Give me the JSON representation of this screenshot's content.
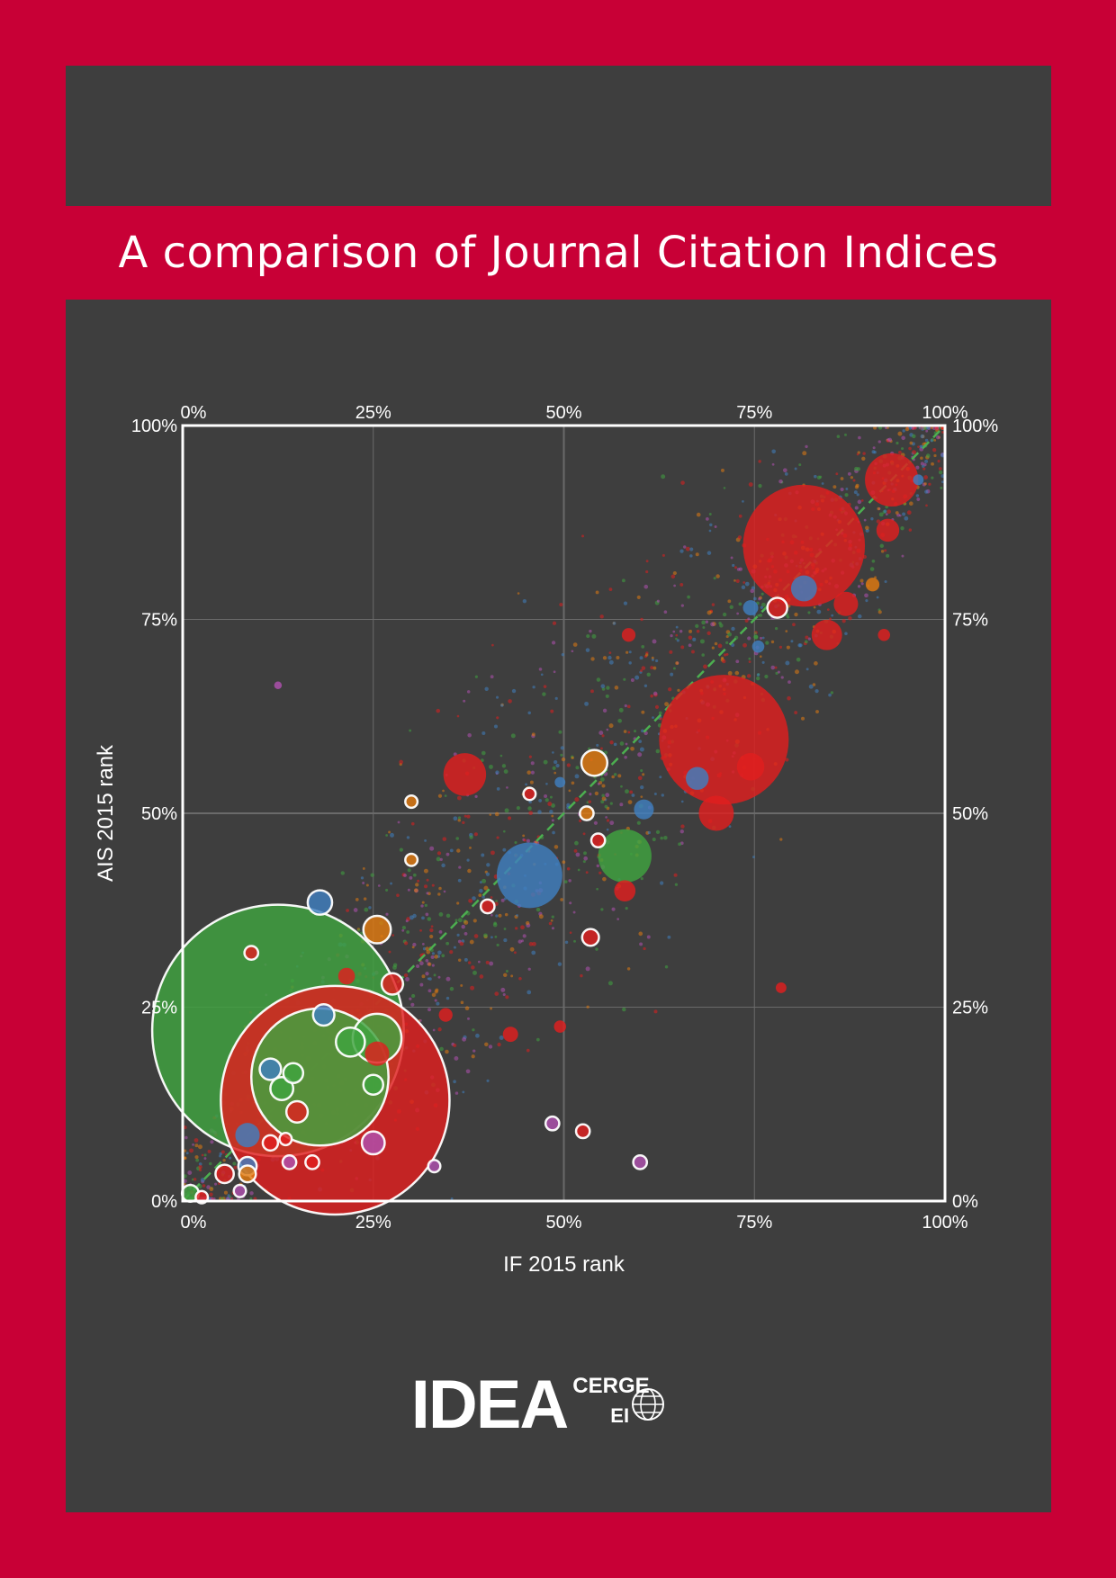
{
  "cover": {
    "title": "A comparison of Journal Citation Indices"
  },
  "logo": {
    "main": "IDEA",
    "cerge": "CERGE",
    "ei": "EI"
  },
  "colors": {
    "page_background": "#c80036",
    "panel_background": "#3e3e3e",
    "red": "#e01e1e",
    "green": "#3fa33f",
    "blue": "#3f7fbf",
    "orange": "#e07a10",
    "purple": "#b050b0",
    "diagonal": "#4caf50",
    "grid": "#6a6a6a",
    "frame": "#ffffff"
  },
  "chart_data": {
    "type": "scatter",
    "xlabel": "IF 2015 rank",
    "ylabel": "AIS 2015 rank",
    "xlim": [
      0,
      100
    ],
    "ylim": [
      0,
      100
    ],
    "x_ticks": [
      "0%",
      "25%",
      "50%",
      "75%",
      "100%"
    ],
    "y_ticks": [
      "0%",
      "25%",
      "50%",
      "75%",
      "100%"
    ],
    "grid": true,
    "diagonal_reference": true,
    "legend": "none",
    "bubbles": [
      {
        "x": 12.5,
        "y": 22,
        "r": 16.5,
        "color": "green",
        "outlined": true
      },
      {
        "x": 20,
        "y": 13,
        "r": 15,
        "color": "red",
        "outlined": true
      },
      {
        "x": 18,
        "y": 16,
        "r": 9,
        "color": "green",
        "outlined": true
      },
      {
        "x": 81.5,
        "y": 84.5,
        "r": 8,
        "color": "red",
        "outlined": false
      },
      {
        "x": 71,
        "y": 59.5,
        "r": 8.5,
        "color": "red",
        "outlined": false
      },
      {
        "x": 45.5,
        "y": 42,
        "r": 4.3,
        "color": "blue",
        "outlined": false
      },
      {
        "x": 58,
        "y": 44.5,
        "r": 3.5,
        "color": "green",
        "outlined": false
      },
      {
        "x": 37,
        "y": 55,
        "r": 2.8,
        "color": "red",
        "outlined": false
      },
      {
        "x": 93,
        "y": 93,
        "r": 3.5,
        "color": "red",
        "outlined": false
      },
      {
        "x": 70,
        "y": 50,
        "r": 2.3,
        "color": "red",
        "outlined": false
      },
      {
        "x": 84.5,
        "y": 73,
        "r": 2,
        "color": "red",
        "outlined": false
      },
      {
        "x": 25.5,
        "y": 21,
        "r": 3.2,
        "color": "green",
        "outlined": true
      },
      {
        "x": 22,
        "y": 20.5,
        "r": 1.9,
        "color": "green",
        "outlined": true
      },
      {
        "x": 25.5,
        "y": 19,
        "r": 1.6,
        "color": "red",
        "outlined": false
      },
      {
        "x": 18,
        "y": 38.5,
        "r": 1.6,
        "color": "blue",
        "outlined": true
      },
      {
        "x": 25.5,
        "y": 35,
        "r": 1.8,
        "color": "orange",
        "outlined": true
      },
      {
        "x": 54,
        "y": 56.5,
        "r": 1.7,
        "color": "orange",
        "outlined": true
      },
      {
        "x": 81.5,
        "y": 79,
        "r": 1.7,
        "color": "blue",
        "outlined": false
      },
      {
        "x": 78,
        "y": 76.5,
        "r": 1.3,
        "color": "red",
        "outlined": true
      },
      {
        "x": 13,
        "y": 14.5,
        "r": 1.5,
        "color": "green",
        "outlined": true
      },
      {
        "x": 11.5,
        "y": 17,
        "r": 1.4,
        "color": "blue",
        "outlined": true
      },
      {
        "x": 15,
        "y": 11.5,
        "r": 1.4,
        "color": "red",
        "outlined": true
      },
      {
        "x": 14.5,
        "y": 16.5,
        "r": 1.3,
        "color": "green",
        "outlined": true
      },
      {
        "x": 18.5,
        "y": 24,
        "r": 1.4,
        "color": "blue",
        "outlined": true
      },
      {
        "x": 27.5,
        "y": 28,
        "r": 1.4,
        "color": "red",
        "outlined": true
      },
      {
        "x": 25,
        "y": 7.5,
        "r": 1.5,
        "color": "purple",
        "outlined": true
      },
      {
        "x": 25,
        "y": 15,
        "r": 1.3,
        "color": "green",
        "outlined": true
      },
      {
        "x": 8.5,
        "y": 8.5,
        "r": 1.6,
        "color": "blue",
        "outlined": false
      },
      {
        "x": 5.5,
        "y": 3.5,
        "r": 1.2,
        "color": "red",
        "outlined": true
      },
      {
        "x": 8.5,
        "y": 4.5,
        "r": 1.2,
        "color": "blue",
        "outlined": true
      },
      {
        "x": 8.5,
        "y": 3.5,
        "r": 1.1,
        "color": "orange",
        "outlined": true
      },
      {
        "x": 1,
        "y": 1,
        "r": 1.1,
        "color": "green",
        "outlined": true
      },
      {
        "x": 2.5,
        "y": 0.5,
        "r": 0.8,
        "color": "red",
        "outlined": true
      },
      {
        "x": 7.5,
        "y": 1.3,
        "r": 0.8,
        "color": "purple",
        "outlined": true
      },
      {
        "x": 11.5,
        "y": 7.5,
        "r": 1,
        "color": "red",
        "outlined": true
      },
      {
        "x": 13.5,
        "y": 8,
        "r": 0.8,
        "color": "red",
        "outlined": true
      },
      {
        "x": 14,
        "y": 5,
        "r": 0.9,
        "color": "purple",
        "outlined": true
      },
      {
        "x": 17,
        "y": 5,
        "r": 0.9,
        "color": "red",
        "outlined": true
      },
      {
        "x": 9,
        "y": 32,
        "r": 0.9,
        "color": "red",
        "outlined": true
      },
      {
        "x": 21.5,
        "y": 29,
        "r": 1.1,
        "color": "red",
        "outlined": false
      },
      {
        "x": 30,
        "y": 51.5,
        "r": 0.8,
        "color": "orange",
        "outlined": true
      },
      {
        "x": 30,
        "y": 44,
        "r": 0.8,
        "color": "orange",
        "outlined": true
      },
      {
        "x": 40,
        "y": 38,
        "r": 0.9,
        "color": "red",
        "outlined": true
      },
      {
        "x": 45.5,
        "y": 52.5,
        "r": 0.8,
        "color": "red",
        "outlined": true
      },
      {
        "x": 53,
        "y": 50,
        "r": 0.9,
        "color": "orange",
        "outlined": true
      },
      {
        "x": 54.5,
        "y": 46.5,
        "r": 0.9,
        "color": "red",
        "outlined": true
      },
      {
        "x": 58,
        "y": 40,
        "r": 1.4,
        "color": "red",
        "outlined": false
      },
      {
        "x": 53.5,
        "y": 34,
        "r": 1.1,
        "color": "red",
        "outlined": true
      },
      {
        "x": 48.5,
        "y": 10,
        "r": 0.9,
        "color": "purple",
        "outlined": true
      },
      {
        "x": 52.5,
        "y": 9,
        "r": 0.9,
        "color": "red",
        "outlined": true
      },
      {
        "x": 60,
        "y": 5,
        "r": 0.9,
        "color": "purple",
        "outlined": true
      },
      {
        "x": 33,
        "y": 4.5,
        "r": 0.8,
        "color": "purple",
        "outlined": true
      },
      {
        "x": 43,
        "y": 21.5,
        "r": 1,
        "color": "red",
        "outlined": false
      },
      {
        "x": 34.5,
        "y": 24,
        "r": 0.9,
        "color": "red",
        "outlined": false
      },
      {
        "x": 49.5,
        "y": 22.5,
        "r": 0.8,
        "color": "red",
        "outlined": false
      },
      {
        "x": 60.5,
        "y": 50.5,
        "r": 1.3,
        "color": "blue",
        "outlined": false
      },
      {
        "x": 58.5,
        "y": 73,
        "r": 0.9,
        "color": "red",
        "outlined": false
      },
      {
        "x": 90.5,
        "y": 79.5,
        "r": 0.9,
        "color": "orange",
        "outlined": false
      },
      {
        "x": 92,
        "y": 73,
        "r": 0.8,
        "color": "red",
        "outlined": false
      },
      {
        "x": 92.5,
        "y": 86.5,
        "r": 1.5,
        "color": "red",
        "outlined": false
      },
      {
        "x": 87,
        "y": 77,
        "r": 1.6,
        "color": "red",
        "outlined": false
      },
      {
        "x": 74.5,
        "y": 76.5,
        "r": 1,
        "color": "blue",
        "outlined": false
      },
      {
        "x": 75.5,
        "y": 71.5,
        "r": 0.8,
        "color": "blue",
        "outlined": false
      },
      {
        "x": 67.5,
        "y": 54.5,
        "r": 1.5,
        "color": "blue",
        "outlined": false
      },
      {
        "x": 74.5,
        "y": 56,
        "r": 1.8,
        "color": "red",
        "outlined": false
      },
      {
        "x": 78.5,
        "y": 27.5,
        "r": 0.7,
        "color": "red",
        "outlined": false
      },
      {
        "x": 96.5,
        "y": 93,
        "r": 0.7,
        "color": "blue",
        "outlined": false
      },
      {
        "x": 49.5,
        "y": 54,
        "r": 0.7,
        "color": "blue",
        "outlined": false
      },
      {
        "x": 12.5,
        "y": 66.5,
        "r": 0.5,
        "color": "purple",
        "outlined": false
      }
    ],
    "background_points": {
      "count": 1800,
      "note_colors": [
        "red",
        "green",
        "blue",
        "orange",
        "purple"
      ]
    }
  }
}
